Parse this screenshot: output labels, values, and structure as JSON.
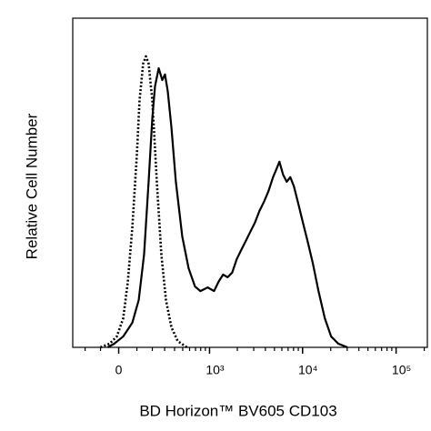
{
  "chart_data": {
    "type": "line",
    "x_label": "BD Horizon™ BV605 CD103",
    "y_label": "Relative Cell Number",
    "xscale": "biexponential",
    "xlim": [
      -300,
      216000
    ],
    "ylim": [
      0,
      100
    ],
    "xticks": [
      0,
      {
        "value": 1000,
        "label": "10³"
      },
      {
        "value": 10000,
        "label": "10⁴"
      },
      {
        "value": 100000,
        "label": "10⁵"
      }
    ],
    "xminorticks": [
      -200,
      -100,
      100,
      200,
      300,
      400,
      500,
      600,
      700,
      800,
      900,
      2000,
      3000,
      4000,
      5000,
      6000,
      7000,
      8000,
      9000,
      20000,
      30000,
      40000,
      50000,
      60000,
      70000,
      80000,
      90000,
      200000
    ],
    "series": [
      {
        "color": "#000000",
        "dash": "solid",
        "x": [
          -59,
          -24,
          24,
          74,
          111,
          144,
          174,
          200,
          220,
          249,
          279,
          303,
          329,
          366,
          415,
          494,
          585,
          690,
          793,
          954,
          1119,
          1253,
          1404,
          1572,
          1760,
          1970,
          2203,
          2462,
          2755,
          3081,
          3450,
          3860,
          4320,
          4830,
          5160,
          5650,
          6180,
          6760,
          7390,
          8080,
          9040,
          10100,
          11300,
          12900,
          14800,
          17300,
          20200,
          24100,
          30200
        ],
        "values": [
          0,
          1.1,
          3.3,
          7.5,
          14.4,
          28.2,
          50.3,
          69.6,
          79.3,
          84.8,
          81.2,
          82.9,
          77.9,
          66.9,
          50.3,
          33.7,
          24.0,
          18.5,
          17.1,
          18.2,
          17.1,
          19.9,
          22.1,
          21.3,
          22.7,
          26.8,
          29.6,
          32.3,
          35.1,
          37.8,
          41.4,
          44.2,
          47.5,
          51.7,
          53.6,
          56.4,
          52.5,
          50.3,
          51.7,
          48.9,
          43.4,
          37.8,
          32.3,
          25.4,
          17.1,
          8.8,
          3.3,
          1.1,
          0
        ]
      },
      {
        "color": "#000000",
        "dash": "dotted",
        "x": [
          -100,
          -49,
          -10,
          24,
          49,
          74,
          100,
          116,
          138,
          156,
          174,
          200,
          234,
          271,
          312,
          366,
          437,
          559
        ],
        "values": [
          0,
          1.1,
          3.3,
          8.8,
          19.9,
          36.5,
          58.6,
          75.1,
          86.2,
          88.4,
          86.2,
          75.1,
          50.3,
          28.2,
          14.4,
          6.1,
          1.9,
          0
        ]
      }
    ]
  }
}
